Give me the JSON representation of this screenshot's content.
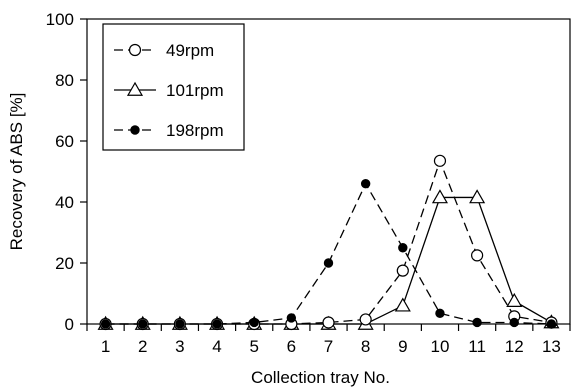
{
  "chart_data": {
    "type": "line",
    "xlabel": "Collection tray No.",
    "ylabel": "Recovery of ABS [%]",
    "categories": [
      "1",
      "2",
      "3",
      "4",
      "5",
      "6",
      "7",
      "8",
      "9",
      "10",
      "11",
      "12",
      "13"
    ],
    "ylim": [
      0,
      100
    ],
    "yticks": [
      "0",
      "20",
      "40",
      "60",
      "80",
      "100"
    ],
    "grid": false,
    "legend_position": "top-left",
    "series": [
      {
        "name": "49rpm",
        "marker": "open-circle",
        "line_style": "dashed",
        "color": "#000000",
        "values": [
          0,
          0,
          0,
          0,
          0,
          0,
          0.5,
          1.5,
          17.5,
          53.5,
          22.5,
          2.5,
          0.5
        ]
      },
      {
        "name": "101rpm",
        "marker": "open-triangle",
        "line_style": "solid",
        "color": "#000000",
        "values": [
          0,
          0,
          0,
          0,
          0,
          0,
          0,
          0,
          6,
          41.5,
          41.5,
          7.5,
          0.5
        ]
      },
      {
        "name": "198rpm",
        "marker": "filled-circle",
        "line_style": "dashed",
        "color": "#000000",
        "values": [
          0,
          0,
          0,
          0,
          0.5,
          2,
          20,
          46,
          25,
          3.5,
          0.5,
          0.5,
          0
        ]
      }
    ]
  }
}
